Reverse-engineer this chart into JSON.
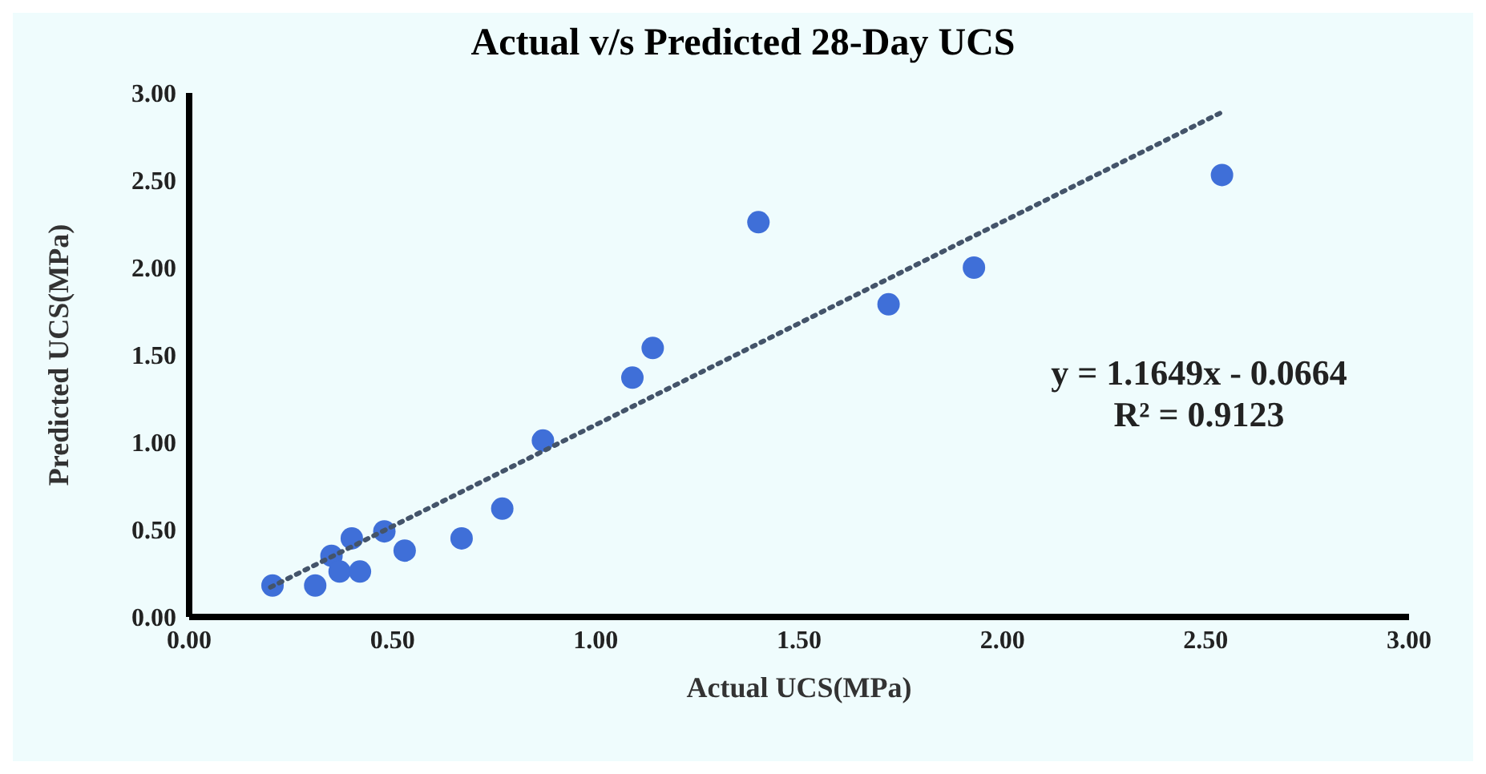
{
  "chart_data": {
    "type": "scatter",
    "title": "Actual v/s Predicted 28-Day UCS",
    "xlabel": "Actual UCS(MPa)",
    "ylabel": "Predicted UCS(MPa)",
    "series": [
      {
        "color": "#3f6fd8",
        "x": [
          0.205,
          0.31,
          0.35,
          0.37,
          0.42,
          0.4,
          0.48,
          0.53,
          0.67,
          0.77,
          0.87,
          1.09,
          1.14,
          1.4,
          1.72,
          1.93,
          2.54
        ],
        "values": [
          0.18,
          0.18,
          0.35,
          0.26,
          0.26,
          0.45,
          0.49,
          0.38,
          0.45,
          0.62,
          1.01,
          1.37,
          1.54,
          2.26,
          1.79,
          2.0,
          2.53
        ]
      },
      {
        "type": "line",
        "color": "#44546a",
        "line_style": "dotted",
        "marker": "none",
        "x": [
          0.2,
          2.54
        ],
        "values": [
          0.17,
          2.89
        ]
      }
    ],
    "annotations": [
      "y = 1.1649x - 0.0664",
      "R² = 0.9123"
    ],
    "xlim": [
      0,
      3
    ],
    "xticks": [
      {
        "value": 0,
        "label": "0.00"
      },
      {
        "value": 0.5,
        "label": "0.50"
      },
      {
        "value": 1,
        "label": "1.00"
      },
      {
        "value": 1.5,
        "label": "1.50"
      },
      {
        "value": 2,
        "label": "2.00"
      },
      {
        "value": 2.5,
        "label": "2.50"
      },
      {
        "value": 3,
        "label": "3.00"
      }
    ],
    "ylim": [
      0,
      3
    ],
    "yticks": [
      {
        "value": 0,
        "label": "0.00"
      },
      {
        "value": 0.5,
        "label": "0.50"
      },
      {
        "value": 1,
        "label": "1.00"
      },
      {
        "value": 1.5,
        "label": "1.50"
      },
      {
        "value": 2,
        "label": "2.00"
      },
      {
        "value": 2.5,
        "label": "2.50"
      },
      {
        "value": 3,
        "label": "3.00"
      }
    ],
    "grid": false,
    "legend": false,
    "marker": "circle"
  }
}
